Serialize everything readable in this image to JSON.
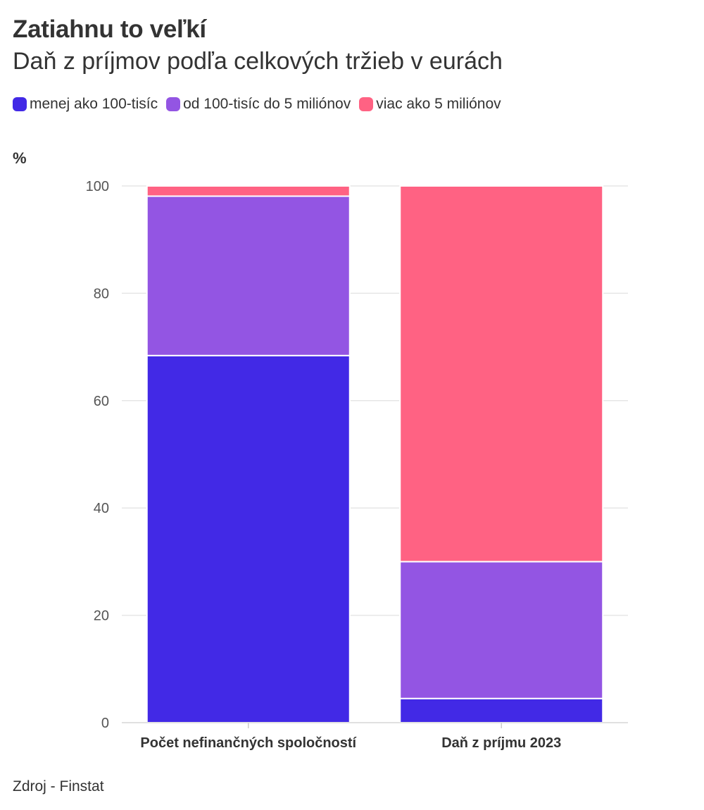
{
  "header": {
    "title": "Zatiahnu to veľkí",
    "subtitle": "Daň z príjmov podľa celkových tržieb v eurách"
  },
  "legend": {
    "items": [
      {
        "label": "menej ako 100-tisíc",
        "color": "#4229e6"
      },
      {
        "label": "od 100-tisíc do 5 miliónov",
        "color": "#9355e3"
      },
      {
        "label": "viac ako 5 miliónov",
        "color": "#ff6283"
      }
    ]
  },
  "footer": {
    "source": "Zdroj - Finstat"
  },
  "chart_data": {
    "type": "bar",
    "stacked": true,
    "ylabel": "%",
    "ylim": [
      0,
      100
    ],
    "yticks": [
      0,
      20,
      40,
      60,
      80,
      100
    ],
    "grid": true,
    "legend_position": "top-left",
    "categories": [
      "Počet nefinančných spoločností",
      "Daň z príjmu 2023"
    ],
    "series": [
      {
        "name": "menej ako 100-tisíc",
        "color": "#4229e6",
        "values": [
          68.4,
          4.5
        ]
      },
      {
        "name": "od 100-tisíc do 5 miliónov",
        "color": "#9355e3",
        "values": [
          29.7,
          25.5
        ]
      },
      {
        "name": "viac ako 5 miliónov",
        "color": "#ff6283",
        "values": [
          1.9,
          70.0
        ]
      }
    ]
  }
}
